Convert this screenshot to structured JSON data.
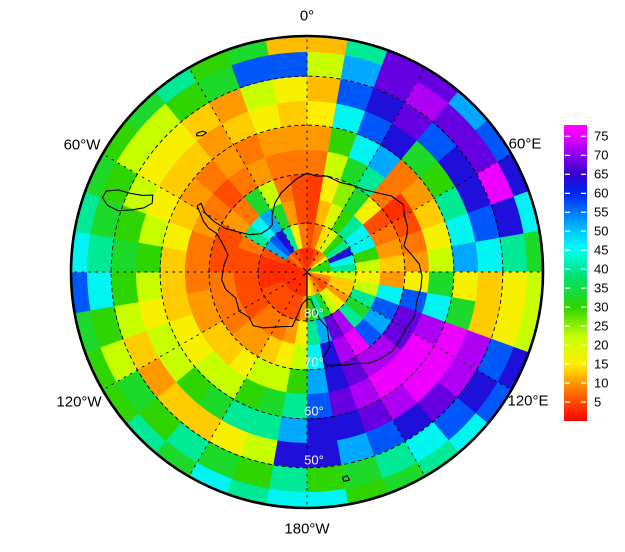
{
  "page": {
    "background": "#ffffff"
  },
  "chart_data": {
    "type": "heatmap",
    "projection": "south-polar",
    "title": "",
    "lon_labels": [
      {
        "id": "lon-0",
        "text": "0°"
      },
      {
        "id": "lon-60e",
        "text": "60°E"
      },
      {
        "id": "lon-120e",
        "text": "120°E"
      },
      {
        "id": "lon-180w",
        "text": "180°W"
      },
      {
        "id": "lon-120w",
        "text": "120°W"
      },
      {
        "id": "lon-60w",
        "text": "60°W"
      }
    ],
    "lat_ring_labels": [
      "80°",
      "70°",
      "60°",
      "50°"
    ],
    "lat_rings_deg": [
      80,
      70,
      60,
      50
    ],
    "edge_lat_deg": 42,
    "meridian_step_deg": 30,
    "colorbar": {
      "min": 0,
      "max": 78,
      "ticks": [
        75,
        70,
        65,
        60,
        55,
        50,
        45,
        40,
        35,
        30,
        25,
        20,
        15,
        10,
        5
      ],
      "stops": [
        [
          0,
          "#ff0000"
        ],
        [
          8,
          "#ff7700"
        ],
        [
          15,
          "#ffee00"
        ],
        [
          22,
          "#c8ff00"
        ],
        [
          30,
          "#2fd500"
        ],
        [
          38,
          "#00e070"
        ],
        [
          45,
          "#00ffee"
        ],
        [
          50,
          "#00c8ff"
        ],
        [
          55,
          "#0077ff"
        ],
        [
          60,
          "#0026f0"
        ],
        [
          65,
          "#3300cc"
        ],
        [
          70,
          "#8800ee"
        ],
        [
          75,
          "#e600ff"
        ],
        [
          78,
          "#ff00ff"
        ]
      ]
    },
    "grid": {
      "lon_step_deg": 10,
      "sector_start_lon": 0,
      "ring_lat_bounds": [
        90,
        85,
        80,
        75,
        70,
        65,
        60,
        55,
        50,
        45,
        42
      ],
      "values": [
        [
          3,
          5,
          4,
          4,
          8,
          10,
          15,
          12,
          22,
          12
        ],
        [
          3,
          8,
          12,
          16,
          22,
          30,
          46,
          57,
          52,
          40
        ],
        [
          5,
          14,
          20,
          25,
          33,
          46,
          57,
          63,
          68,
          68
        ],
        [
          8,
          20,
          30,
          33,
          40,
          52,
          63,
          68,
          72,
          68
        ],
        [
          10,
          30,
          40,
          16,
          8,
          8,
          33,
          57,
          68,
          52
        ],
        [
          16,
          40,
          46,
          5,
          3,
          10,
          30,
          63,
          68,
          57
        ],
        [
          30,
          63,
          46,
          8,
          5,
          13,
          40,
          63,
          76,
          63
        ],
        [
          33,
          46,
          30,
          10,
          8,
          16,
          46,
          57,
          63,
          46
        ],
        [
          30,
          40,
          22,
          13,
          10,
          22,
          52,
          46,
          40,
          33
        ],
        [
          16,
          22,
          16,
          10,
          16,
          33,
          16,
          13,
          16,
          22
        ],
        [
          10,
          13,
          22,
          46,
          57,
          46,
          33,
          13,
          16,
          22
        ],
        [
          8,
          13,
          40,
          57,
          68,
          72,
          76,
          72,
          57,
          63
        ],
        [
          5,
          10,
          33,
          52,
          68,
          76,
          76,
          72,
          63,
          57
        ],
        [
          5,
          16,
          40,
          57,
          72,
          76,
          76,
          68,
          57,
          46
        ],
        [
          8,
          22,
          72,
          76,
          72,
          76,
          72,
          63,
          46,
          40
        ],
        [
          10,
          33,
          68,
          72,
          68,
          72,
          68,
          57,
          40,
          33
        ],
        [
          13,
          40,
          52,
          63,
          63,
          68,
          63,
          52,
          33,
          30
        ],
        [
          16,
          30,
          40,
          46,
          52,
          57,
          63,
          63,
          30,
          46
        ],
        [
          3,
          10,
          16,
          22,
          30,
          40,
          52,
          63,
          40,
          46
        ],
        [
          3,
          5,
          10,
          16,
          22,
          33,
          40,
          22,
          30,
          40
        ],
        [
          3,
          5,
          8,
          13,
          22,
          30,
          40,
          16,
          33,
          46
        ],
        [
          3,
          5,
          8,
          10,
          16,
          22,
          33,
          13,
          40,
          33
        ],
        [
          3,
          5,
          8,
          10,
          13,
          22,
          30,
          13,
          30,
          40
        ],
        [
          3,
          5,
          5,
          8,
          13,
          16,
          22,
          10,
          33,
          30
        ],
        [
          3,
          5,
          5,
          8,
          10,
          16,
          22,
          13,
          22,
          30
        ],
        [
          3,
          3,
          5,
          8,
          10,
          13,
          16,
          22,
          30,
          33
        ],
        [
          3,
          3,
          5,
          8,
          8,
          13,
          22,
          30,
          46,
          57
        ],
        [
          3,
          3,
          5,
          5,
          8,
          13,
          30,
          33,
          40,
          46
        ],
        [
          3,
          3,
          5,
          5,
          8,
          16,
          22,
          30,
          33,
          40
        ],
        [
          3,
          5,
          8,
          5,
          10,
          13,
          16,
          22,
          30,
          33
        ],
        [
          5,
          52,
          40,
          10,
          8,
          10,
          13,
          16,
          22,
          30
        ],
        [
          8,
          57,
          46,
          8,
          5,
          8,
          13,
          16,
          22,
          33
        ],
        [
          5,
          63,
          52,
          33,
          8,
          10,
          10,
          13,
          30,
          40
        ],
        [
          5,
          40,
          33,
          22,
          10,
          8,
          13,
          10,
          33,
          30
        ],
        [
          3,
          16,
          10,
          8,
          8,
          10,
          16,
          22,
          57,
          33
        ],
        [
          3,
          8,
          5,
          5,
          8,
          10,
          13,
          16,
          57,
          12
        ]
      ]
    },
    "coastlines": {
      "antarctica": [
        [
          -59,
          -63.8
        ],
        [
          -61,
          -65
        ],
        [
          -64,
          -66.5
        ],
        [
          -66,
          -68
        ],
        [
          -67,
          -70
        ],
        [
          -72,
          -72
        ],
        [
          -78,
          -73.5
        ],
        [
          -85,
          -73
        ],
        [
          -95,
          -72.5
        ],
        [
          -102,
          -73
        ],
        [
          -110,
          -74.5
        ],
        [
          -120,
          -74
        ],
        [
          -128,
          -75
        ],
        [
          -135,
          -74.5
        ],
        [
          -142,
          -75.5
        ],
        [
          -150,
          -77
        ],
        [
          -158,
          -78
        ],
        [
          -165,
          -78.5
        ],
        [
          -172,
          -83.5
        ],
        [
          -180,
          -84.5
        ],
        [
          172,
          -84.3
        ],
        [
          165,
          -80
        ],
        [
          160,
          -78
        ],
        [
          163,
          -74
        ],
        [
          170,
          -72
        ],
        [
          168,
          -70.5
        ],
        [
          158,
          -69.5
        ],
        [
          150,
          -68.5
        ],
        [
          146,
          -67.5
        ],
        [
          140,
          -66.8
        ],
        [
          133,
          -66.2
        ],
        [
          126,
          -66.5
        ],
        [
          120,
          -66.7
        ],
        [
          112,
          -66.2
        ],
        [
          105,
          -66.8
        ],
        [
          98,
          -66.5
        ],
        [
          92,
          -66.5
        ],
        [
          86,
          -67
        ],
        [
          80,
          -68.5
        ],
        [
          75,
          -69.5
        ],
        [
          70,
          -68.3
        ],
        [
          66,
          -67.5
        ],
        [
          60,
          -67
        ],
        [
          55,
          -66
        ],
        [
          48,
          -66.8
        ],
        [
          42,
          -68.3
        ],
        [
          35,
          -69.5
        ],
        [
          28,
          -70
        ],
        [
          20,
          -70.5
        ],
        [
          12,
          -70
        ],
        [
          5,
          -70.3
        ],
        [
          0,
          -69.8
        ],
        [
          -6,
          -70.8
        ],
        [
          -12,
          -72
        ],
        [
          -18,
          -73
        ],
        [
          -25,
          -74.5
        ],
        [
          -32,
          -76.5
        ],
        [
          -36,
          -78
        ],
        [
          -42,
          -78.2
        ],
        [
          -50,
          -77.8
        ],
        [
          -57,
          -76
        ],
        [
          -60,
          -73.5
        ],
        [
          -62,
          -71
        ],
        [
          -61.5,
          -68.5
        ],
        [
          -60,
          -66
        ],
        [
          -57,
          -64.2
        ],
        [
          -59,
          -63.8
        ]
      ],
      "south_america": [
        [
          -68,
          -45.8
        ],
        [
          -66.5,
          -48
        ],
        [
          -66,
          -50.5
        ],
        [
          -65,
          -53
        ],
        [
          -63.5,
          -54.8
        ],
        [
          -66,
          -55.4
        ],
        [
          -68.5,
          -54.2
        ],
        [
          -70.5,
          -52
        ],
        [
          -72,
          -49.5
        ],
        [
          -71.5,
          -47
        ],
        [
          -70,
          -45.5
        ],
        [
          -68,
          -45.8
        ]
      ],
      "south_georgia": [
        [
          -38.5,
          -53.8
        ],
        [
          -36.5,
          -54.2
        ],
        [
          -35.8,
          -54.9
        ],
        [
          -37.5,
          -54.9
        ],
        [
          -39,
          -54.2
        ],
        [
          -38.5,
          -53.8
        ]
      ],
      "island_se": [
        [
          168.5,
          -46.6
        ],
        [
          170,
          -46.6
        ],
        [
          170.2,
          -47.4
        ],
        [
          168.8,
          -47.6
        ],
        [
          168.5,
          -46.6
        ]
      ]
    }
  }
}
